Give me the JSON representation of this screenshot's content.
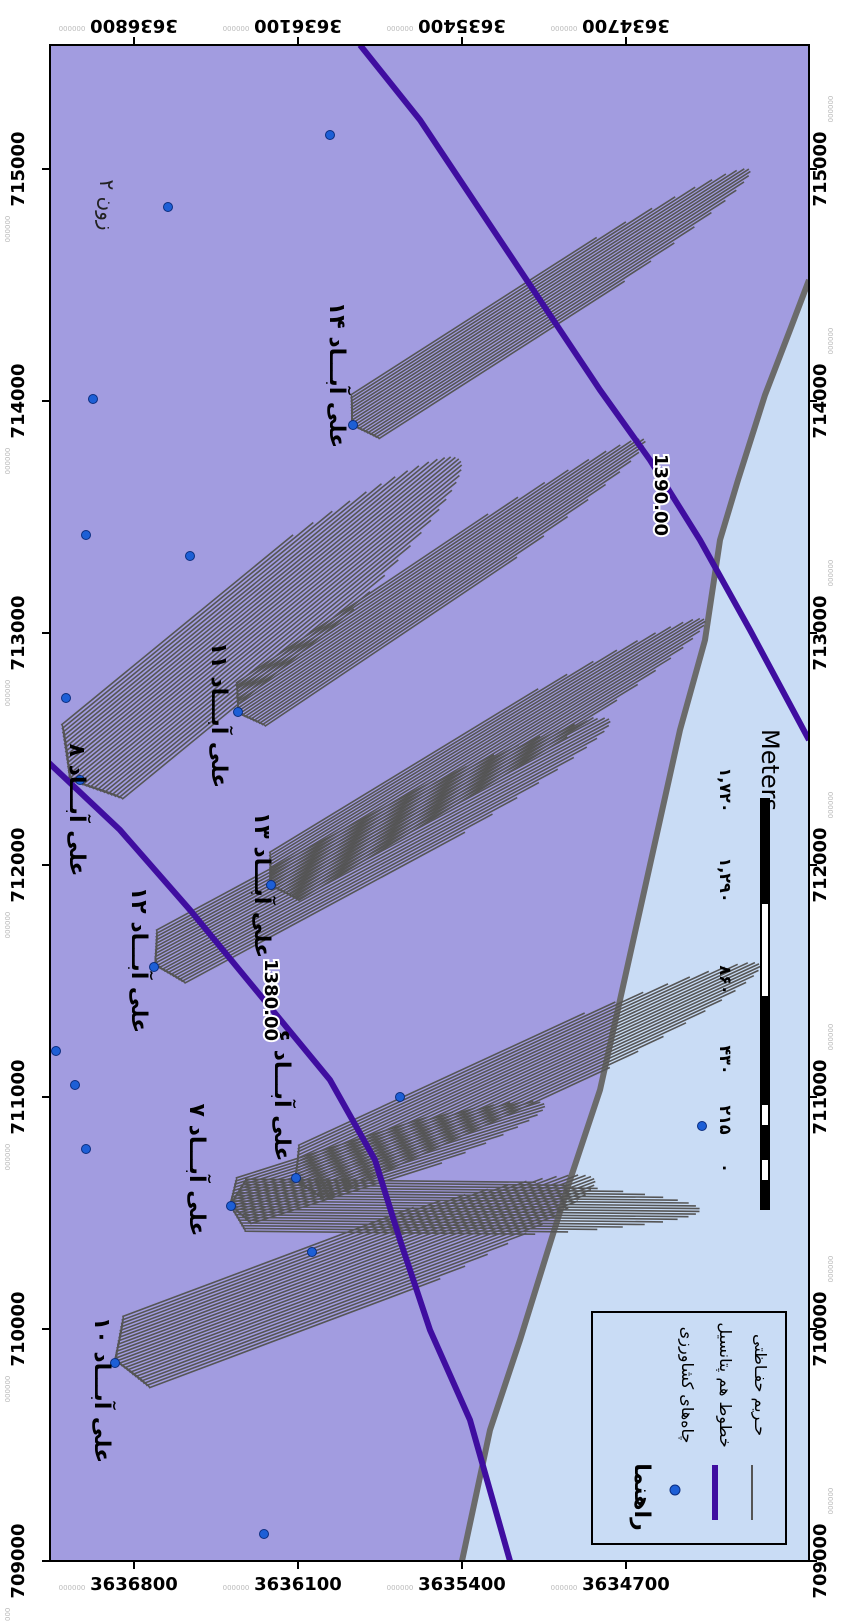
{
  "map": {
    "x_ticks": [
      "709000",
      "710000",
      "711000",
      "712000",
      "713000",
      "714000",
      "715000"
    ],
    "y_ticks": [
      "3634700",
      "3635400",
      "3636100",
      "3636800"
    ],
    "tick_suffix": "000000",
    "zone_label": "زون ۲",
    "wells": [
      {
        "label": "علی آبـــاد ۱۰"
      },
      {
        "label": "علی آبـــاد ۷"
      },
      {
        "label": "علی آبـــاد ۶"
      },
      {
        "label": "علی آبـــاد ۱۲"
      },
      {
        "label": "علی آبـــاد ۱۳"
      },
      {
        "label": "علی آبـــاد ۸"
      },
      {
        "label": "علی آبـــاد ۱۱"
      },
      {
        "label": "علی آبـــاد ۱۴"
      }
    ],
    "contours": [
      {
        "label": "1380.00"
      },
      {
        "label": "1390.00"
      }
    ],
    "scale_bar": {
      "ticks": [
        "۰",
        "۲۱۵",
        "۴۳۰",
        "۸۶۰",
        "۱,۲۹۰",
        "۱,۷۲۰"
      ],
      "unit": "Meters"
    },
    "legend": {
      "title": "راهنما",
      "items": [
        {
          "label": "چاه‌های کشاورزی"
        },
        {
          "label": "خطوط هم پتانسیل"
        },
        {
          "label": "حـریم حفـاظتی"
        }
      ]
    },
    "colors": {
      "zone_fill": "#a29ce0",
      "outside_fill": "#c9dcf5",
      "contour_line": "#3f0ea0",
      "boundary_line": "#6b6b6b",
      "plume_line": "#555555",
      "well_dot": "#1d5fd6"
    }
  }
}
